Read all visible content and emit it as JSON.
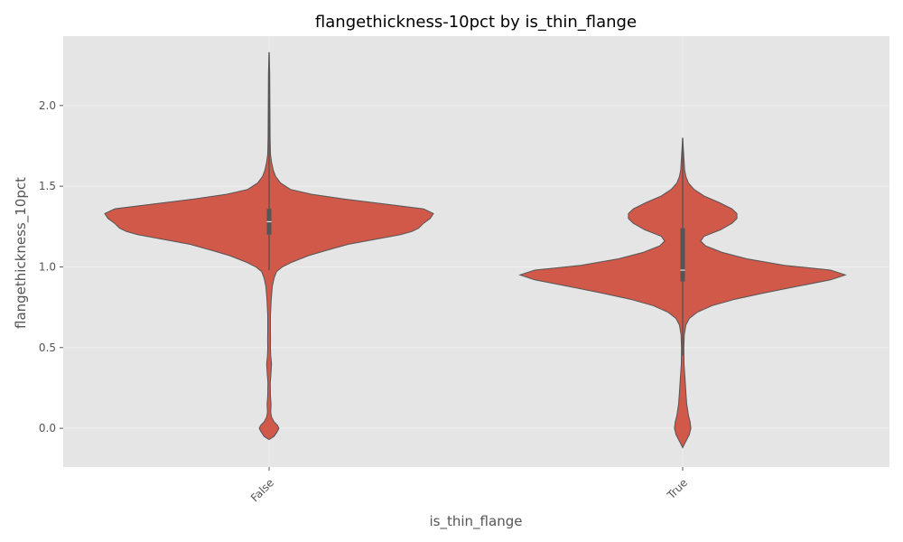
{
  "chart_data": {
    "type": "violin",
    "title": "flangethickness-10pct by is_thin_flange",
    "xlabel": "is_thin_flange",
    "ylabel": "flangethickness_10pct",
    "categories": [
      "False",
      "True"
    ],
    "ylim": [
      -0.24,
      2.43
    ],
    "yticks": [
      0.0,
      0.5,
      1.0,
      1.5,
      2.0
    ],
    "ytick_labels": [
      "0.0",
      "0.5",
      "1.0",
      "1.5",
      "2.0"
    ],
    "grid": true,
    "colors": {
      "background": "#e5e5e5",
      "violin_fill": "#d1594a",
      "violin_edge": "#555555",
      "grid": "#f0f0f0",
      "box": "#555555",
      "median": "#e5e5e5"
    },
    "violins": [
      {
        "category": "False",
        "whisker": [
          0.98,
          2.33
        ],
        "iqr": [
          1.2,
          1.36
        ],
        "median": 1.28,
        "density": [
          [
            -0.07,
            0.0
          ],
          [
            -0.05,
            0.03
          ],
          [
            -0.02,
            0.05
          ],
          [
            0.0,
            0.06
          ],
          [
            0.02,
            0.05
          ],
          [
            0.04,
            0.03
          ],
          [
            0.07,
            0.015
          ],
          [
            0.1,
            0.01
          ],
          [
            0.15,
            0.012
          ],
          [
            0.2,
            0.008
          ],
          [
            0.28,
            0.007
          ],
          [
            0.35,
            0.012
          ],
          [
            0.4,
            0.015
          ],
          [
            0.45,
            0.01
          ],
          [
            0.5,
            0.008
          ],
          [
            0.55,
            0.009
          ],
          [
            0.6,
            0.008
          ],
          [
            0.7,
            0.008
          ],
          [
            0.8,
            0.013
          ],
          [
            0.88,
            0.02
          ],
          [
            0.93,
            0.03
          ],
          [
            0.97,
            0.045
          ],
          [
            1.0,
            0.08
          ],
          [
            1.03,
            0.14
          ],
          [
            1.07,
            0.24
          ],
          [
            1.1,
            0.34
          ],
          [
            1.14,
            0.48
          ],
          [
            1.17,
            0.64
          ],
          [
            1.2,
            0.8
          ],
          [
            1.22,
            0.87
          ],
          [
            1.24,
            0.91
          ],
          [
            1.27,
            0.94
          ],
          [
            1.3,
            0.98
          ],
          [
            1.33,
            1.0
          ],
          [
            1.36,
            0.94
          ],
          [
            1.39,
            0.7
          ],
          [
            1.42,
            0.46
          ],
          [
            1.45,
            0.26
          ],
          [
            1.48,
            0.13
          ],
          [
            1.52,
            0.07
          ],
          [
            1.56,
            0.04
          ],
          [
            1.6,
            0.025
          ],
          [
            1.65,
            0.015
          ],
          [
            1.7,
            0.008
          ],
          [
            1.8,
            0.006
          ],
          [
            2.0,
            0.005
          ],
          [
            2.2,
            0.004
          ],
          [
            2.33,
            0.0
          ]
        ]
      },
      {
        "category": "True",
        "whisker": [
          0.45,
          1.8
        ],
        "iqr": [
          0.91,
          1.24
        ],
        "median": 0.98,
        "density": [
          [
            -0.12,
            0.0
          ],
          [
            -0.08,
            0.02
          ],
          [
            -0.04,
            0.04
          ],
          [
            0.0,
            0.05
          ],
          [
            0.04,
            0.045
          ],
          [
            0.08,
            0.035
          ],
          [
            0.15,
            0.025
          ],
          [
            0.22,
            0.02
          ],
          [
            0.3,
            0.015
          ],
          [
            0.4,
            0.008
          ],
          [
            0.5,
            0.007
          ],
          [
            0.58,
            0.01
          ],
          [
            0.64,
            0.02
          ],
          [
            0.68,
            0.04
          ],
          [
            0.72,
            0.09
          ],
          [
            0.76,
            0.18
          ],
          [
            0.8,
            0.32
          ],
          [
            0.84,
            0.5
          ],
          [
            0.88,
            0.7
          ],
          [
            0.92,
            0.9
          ],
          [
            0.95,
            0.99
          ],
          [
            0.98,
            0.9
          ],
          [
            1.01,
            0.62
          ],
          [
            1.05,
            0.39
          ],
          [
            1.09,
            0.24
          ],
          [
            1.13,
            0.14
          ],
          [
            1.16,
            0.11
          ],
          [
            1.19,
            0.13
          ],
          [
            1.23,
            0.23
          ],
          [
            1.27,
            0.3
          ],
          [
            1.3,
            0.33
          ],
          [
            1.33,
            0.33
          ],
          [
            1.36,
            0.3
          ],
          [
            1.4,
            0.22
          ],
          [
            1.44,
            0.13
          ],
          [
            1.48,
            0.07
          ],
          [
            1.52,
            0.035
          ],
          [
            1.56,
            0.02
          ],
          [
            1.6,
            0.012
          ],
          [
            1.7,
            0.006
          ],
          [
            1.8,
            0.0
          ]
        ]
      }
    ]
  }
}
